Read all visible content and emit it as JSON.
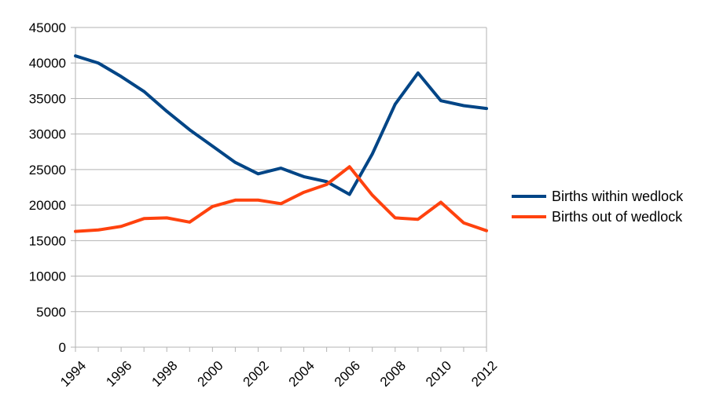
{
  "chart_data": {
    "type": "line",
    "title": "",
    "xlabel": "",
    "ylabel": "",
    "x": [
      1994,
      1995,
      1996,
      1997,
      1998,
      1999,
      2000,
      2001,
      2002,
      2003,
      2004,
      2005,
      2006,
      2007,
      2008,
      2009,
      2010,
      2011,
      2012
    ],
    "x_tick_labels": [
      "1994",
      "1996",
      "1998",
      "2000",
      "2002",
      "2004",
      "2006",
      "2008",
      "2010",
      "2012"
    ],
    "y_tick_labels": [
      "0",
      "5000",
      "10000",
      "15000",
      "20000",
      "25000",
      "30000",
      "35000",
      "40000",
      "45000"
    ],
    "ylim": [
      0,
      45000
    ],
    "grid": "horizontal",
    "legend_position": "right",
    "series": [
      {
        "name": "Births within wedlock",
        "color": "#004586",
        "values": [
          41000,
          40000,
          38100,
          36000,
          33200,
          30600,
          28300,
          26000,
          24400,
          25200,
          24000,
          23300,
          21500,
          27200,
          34200,
          38600,
          34700,
          34000,
          33600
        ]
      },
      {
        "name": "Births out of wedlock",
        "color": "#ff420e",
        "values": [
          16300,
          16500,
          17000,
          18100,
          18200,
          17600,
          19800,
          20700,
          20700,
          20200,
          21800,
          22900,
          25400,
          21400,
          18200,
          18000,
          20400,
          17500,
          16400
        ]
      }
    ]
  }
}
